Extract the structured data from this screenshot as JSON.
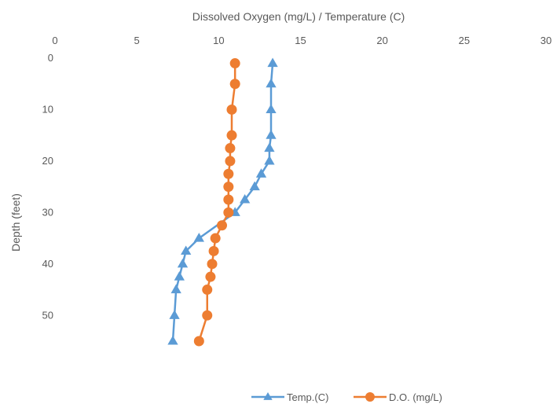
{
  "chart_data": {
    "type": "line",
    "title": "",
    "xlabel": "Dissolved Oxygen (mg/L) / Temperature (C)",
    "ylabel": "Depth (feet)",
    "xlim": [
      0,
      30
    ],
    "ylim": [
      0,
      55
    ],
    "x_ticks": [
      "0",
      "5",
      "10",
      "15",
      "20",
      "25",
      "30"
    ],
    "y_ticks": [
      "0",
      "10",
      "20",
      "30",
      "40",
      "50"
    ],
    "x_axis_position": "top",
    "y_axis_inverted": true,
    "grid": false,
    "legend_position": "bottom",
    "series": [
      {
        "name": "Temp.(C)",
        "color": "#5b9bd5",
        "marker": "triangle",
        "points": [
          {
            "value": 13.3,
            "depth": 1
          },
          {
            "value": 13.2,
            "depth": 5
          },
          {
            "value": 13.2,
            "depth": 10
          },
          {
            "value": 13.2,
            "depth": 15
          },
          {
            "value": 13.1,
            "depth": 17.5
          },
          {
            "value": 13.1,
            "depth": 20
          },
          {
            "value": 12.6,
            "depth": 22.5
          },
          {
            "value": 12.2,
            "depth": 25
          },
          {
            "value": 11.6,
            "depth": 27.5
          },
          {
            "value": 11.0,
            "depth": 30
          },
          {
            "value": 8.8,
            "depth": 35
          },
          {
            "value": 8.0,
            "depth": 37.5
          },
          {
            "value": 7.8,
            "depth": 40
          },
          {
            "value": 7.6,
            "depth": 42.5
          },
          {
            "value": 7.4,
            "depth": 45
          },
          {
            "value": 7.3,
            "depth": 50
          },
          {
            "value": 7.2,
            "depth": 55
          }
        ]
      },
      {
        "name": "D.O. (mg/L)",
        "color": "#ed7d31",
        "marker": "circle",
        "points": [
          {
            "value": 11.0,
            "depth": 1
          },
          {
            "value": 11.0,
            "depth": 5
          },
          {
            "value": 10.8,
            "depth": 10
          },
          {
            "value": 10.8,
            "depth": 15
          },
          {
            "value": 10.7,
            "depth": 17.5
          },
          {
            "value": 10.7,
            "depth": 20
          },
          {
            "value": 10.6,
            "depth": 22.5
          },
          {
            "value": 10.6,
            "depth": 25
          },
          {
            "value": 10.6,
            "depth": 27.5
          },
          {
            "value": 10.6,
            "depth": 30
          },
          {
            "value": 10.2,
            "depth": 32.5
          },
          {
            "value": 9.8,
            "depth": 35
          },
          {
            "value": 9.7,
            "depth": 37.5
          },
          {
            "value": 9.6,
            "depth": 40
          },
          {
            "value": 9.5,
            "depth": 42.5
          },
          {
            "value": 9.3,
            "depth": 45
          },
          {
            "value": 9.3,
            "depth": 50
          },
          {
            "value": 8.8,
            "depth": 55
          }
        ]
      }
    ]
  }
}
